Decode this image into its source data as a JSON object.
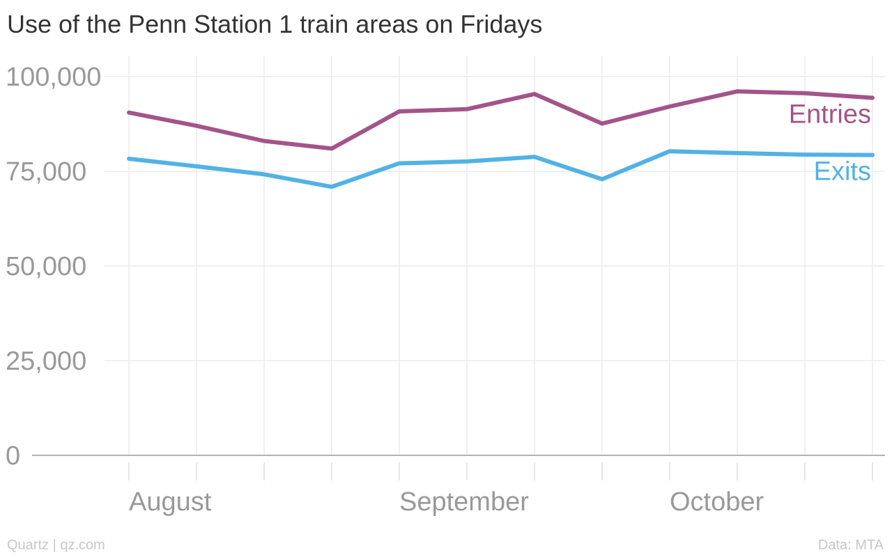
{
  "chart_data": {
    "type": "line",
    "title": "Use of the Penn Station 1 train areas on Fridays",
    "ylim": [
      0,
      100000
    ],
    "yticks": [
      {
        "value": 0,
        "label": "0"
      },
      {
        "value": 25000,
        "label": "25,000"
      },
      {
        "value": 50000,
        "label": "50,000"
      },
      {
        "value": 75000,
        "label": "75,000"
      },
      {
        "value": 100000,
        "label": "100,000"
      }
    ],
    "x": [
      0,
      1,
      2,
      3,
      4,
      5,
      6,
      7,
      8,
      9,
      10,
      11
    ],
    "xlabels": [
      {
        "index": 0,
        "label": "August"
      },
      {
        "index": 4,
        "label": "September"
      },
      {
        "index": 8,
        "label": "October"
      }
    ],
    "grid": true,
    "series": [
      {
        "name": "Entries",
        "color": "#a3548a",
        "values": [
          90500,
          87000,
          83000,
          81000,
          90800,
          91400,
          95400,
          87600,
          92100,
          96100,
          95600,
          94400
        ]
      },
      {
        "name": "Exits",
        "color": "#51b2e5",
        "values": [
          78300,
          76300,
          74200,
          70900,
          77100,
          77600,
          78800,
          72900,
          80300,
          79800,
          79400,
          79300
        ]
      }
    ]
  },
  "footer": {
    "source_left": "Quartz | qz.com",
    "source_right": "Data: MTA"
  }
}
